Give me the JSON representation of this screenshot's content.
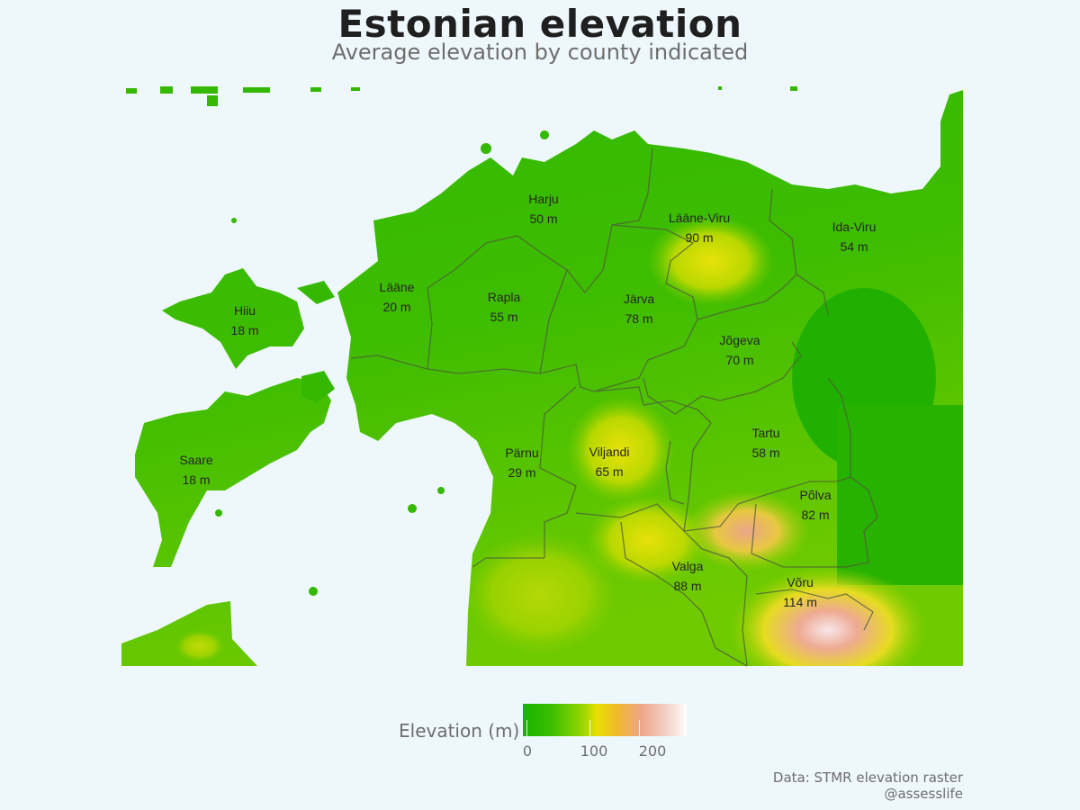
{
  "title": "Estonian elevation",
  "subtitle": "Average elevation by county indicated",
  "counties": [
    {
      "name": "Harju",
      "elevation": "50 m"
    },
    {
      "name": "Lääne-Viru",
      "elevation": "90 m"
    },
    {
      "name": "Ida-Viru",
      "elevation": "54 m"
    },
    {
      "name": "Lääne",
      "elevation": "20 m"
    },
    {
      "name": "Rapla",
      "elevation": "55 m"
    },
    {
      "name": "Järva",
      "elevation": "78 m"
    },
    {
      "name": "Hiiu",
      "elevation": "18 m"
    },
    {
      "name": "Jõgeva",
      "elevation": "70 m"
    },
    {
      "name": "Saare",
      "elevation": "18 m"
    },
    {
      "name": "Pärnu",
      "elevation": "29 m"
    },
    {
      "name": "Viljandi",
      "elevation": "65 m"
    },
    {
      "name": "Tartu",
      "elevation": "58 m"
    },
    {
      "name": "Põlva",
      "elevation": "82 m"
    },
    {
      "name": "Valga",
      "elevation": "88 m"
    },
    {
      "name": "Võru",
      "elevation": "114 m"
    }
  ],
  "legend": {
    "title": "Elevation (m)",
    "ticks": [
      "0",
      "100",
      "200"
    ]
  },
  "credits": {
    "line1": "Data: STMR elevation raster",
    "line2": "@assesslife"
  },
  "colors": {
    "background": "#eef7fc",
    "low": "#18b300",
    "mid": "#e6e000",
    "high": "#eda58a",
    "peak": "#ffffff",
    "border": "#4a5a3a"
  }
}
